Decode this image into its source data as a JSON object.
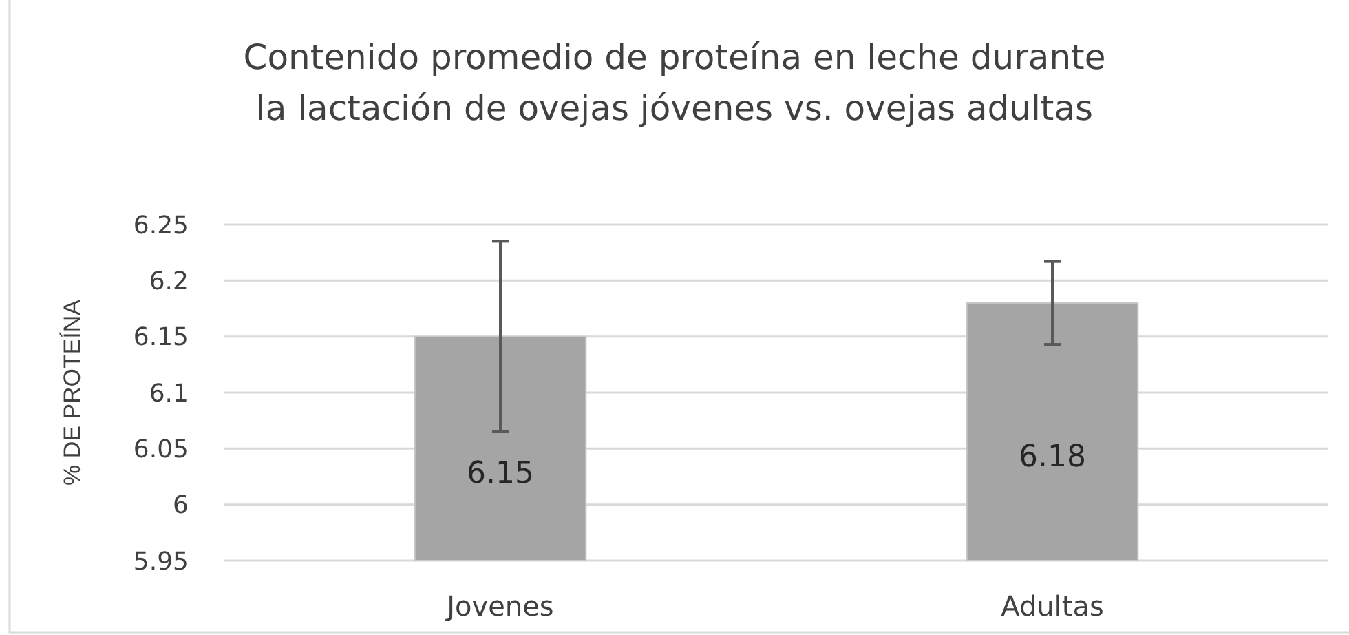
{
  "chart_data": {
    "type": "bar",
    "title": "Contenido promedio de proteína en leche durante la lactación de ovejas jóvenes vs. ovejas adultas",
    "ylabel": "% DE PROTEÍNA",
    "categories": [
      "Jovenes",
      "Adultas"
    ],
    "values": [
      6.15,
      6.18
    ],
    "color": "#a5a5a5",
    "errors": [
      0.085,
      0.037
    ],
    "ylim": [
      5.95,
      6.25
    ],
    "yticks": [
      5.95,
      6,
      6.05,
      6.1,
      6.15,
      6.2,
      6.25
    ],
    "grid": "y",
    "data_labels": true
  }
}
